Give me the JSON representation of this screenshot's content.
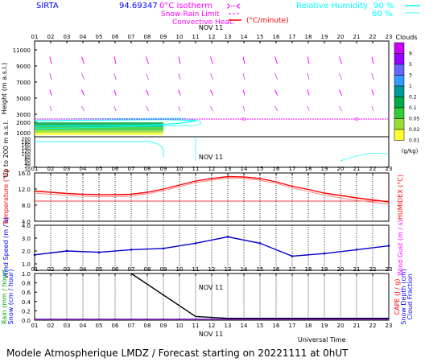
{
  "header": {
    "site": "SIRTA",
    "coords": "94.69347",
    "zero_label": "0°C isotherm",
    "snow_label": "Snow-Rain Limit",
    "conv_label": "Convective Heat.",
    "conv_unit": "(°C/minute)",
    "rh_label": "Relative Humidity",
    "rh_90": "90 %",
    "rh_60": "60 %"
  },
  "footer": {
    "text": "Modele Atmospherique LMDZ / Forecast starting on 20221111 at 0hUT",
    "ut": "Universal Time"
  },
  "colors": {
    "axis_blue": "#0000ff",
    "magenta": "#ff00ff",
    "red": "#ff0000",
    "cyan": "#00ffff",
    "navy": "#0000c8"
  },
  "chart_data": {
    "type": "line",
    "hours": [
      "01",
      "02",
      "03",
      "04",
      "05",
      "06",
      "07",
      "08",
      "09",
      "10",
      "11",
      "12",
      "13",
      "14",
      "15",
      "16",
      "17",
      "18",
      "19",
      "20",
      "21",
      "22",
      "23"
    ],
    "date_label": "NOV 11",
    "panels": [
      {
        "id": "height",
        "ylabel": "Height (m a.s.l.)",
        "ylabel_low": "Up to 200 m a.s.l.",
        "yticks": [
          "11000",
          "9000",
          "7000",
          "5000",
          "3000",
          "2000",
          "1000",
          "200",
          "180",
          "160",
          "140",
          "120",
          "100",
          "80",
          "60",
          "40",
          "20",
          "10"
        ],
        "legend_title": "Clouds",
        "legend_levels": [
          "9",
          "5",
          "3",
          "1",
          "0.2",
          "0.1",
          "0.05",
          "0.02",
          "0.01"
        ],
        "legend_unit": "(g/kg)",
        "legend_colors": [
          "#cc00ff",
          "#9900ff",
          "#6666ff",
          "#3399ff",
          "#009999",
          "#00aa44",
          "#33cc33",
          "#99dd33",
          "#ffff33"
        ],
        "zero_isotherm_m": 2900,
        "wind_barbs_col": [
          "#ff00ff",
          "#cc66cc"
        ],
        "dates": [
          "NOV 11"
        ]
      },
      {
        "id": "temperature",
        "ylabel": "Temperature (°C)",
        "ylabel_right": "HUMIDEX (°C)",
        "ylim": [
          4,
          16
        ],
        "yticks": [
          "16.0",
          "12.0",
          "8.0",
          "4.0"
        ],
        "series": [
          {
            "name": "",
            "color": "#ff0000",
            "values": [
              11.5,
              11.2,
              10.9,
              10.7,
              10.6,
              10.6,
              10.7,
              11.2,
              12.0,
              13.0,
              14.0,
              14.6,
              15.1,
              15.0,
              14.6,
              13.8,
              12.7,
              11.9,
              11.0,
              10.4,
              9.8,
              9.3,
              8.8
            ]
          },
          {
            "name": "",
            "color": "#ff8888",
            "values": [
              11.0,
              10.7,
              10.4,
              10.2,
              10.1,
              10.1,
              10.2,
              10.8,
              11.6,
              12.6,
              13.6,
              14.2,
              14.7,
              14.6,
              14.2,
              13.4,
              12.3,
              11.4,
              10.5,
              9.8,
              9.2,
              8.7,
              8.2
            ]
          }
        ],
        "hline": 9.0
      },
      {
        "id": "wind",
        "ylabel": "Wind Speed (m / s)",
        "ylabel_right": "Wind Gust (m / s)",
        "ylim": [
          0.5,
          4.0
        ],
        "yticks": [
          "4.0",
          "3.0",
          "2.0",
          "1.0"
        ],
        "series": [
          {
            "name": "",
            "color": "#0000c8",
            "x": [
              1,
              3,
              5,
              7,
              9,
              11,
              13,
              15,
              17,
              19,
              21,
              23
            ],
            "values": [
              1.7,
              2.0,
              1.9,
              2.1,
              2.2,
              2.6,
              3.1,
              2.6,
              1.6,
              1.8,
              2.1,
              2.4
            ]
          }
        ]
      },
      {
        "id": "rain",
        "ylabel": "Rain (mm / hour)",
        "ylabel2": "Snow (cm / hour)",
        "ylabel_right": "CAPE (J / g)",
        "ylabel_right2": "Snow Depth (cm)",
        "ylabel_right3": "Cloud Fraction",
        "ylim": [
          0,
          1.0
        ],
        "yticks": [
          "1.0",
          "0.8",
          "0.6",
          "0.4",
          "0.2",
          "0.0"
        ],
        "series": [
          {
            "name": "",
            "color": "#000000",
            "x": [
              7,
              11,
              13,
              23
            ],
            "values": [
              1.0,
              0.08,
              0.04,
              0.04
            ]
          },
          {
            "name": "",
            "color": "#ff3333",
            "x": [
              1,
              11,
              23
            ],
            "values": [
              0.01,
              0.01,
              0.01
            ]
          },
          {
            "name": "",
            "color": "#0000ff",
            "x": [
              1,
              11,
              23
            ],
            "values": [
              0.02,
              0.02,
              0.02
            ]
          }
        ]
      }
    ]
  }
}
